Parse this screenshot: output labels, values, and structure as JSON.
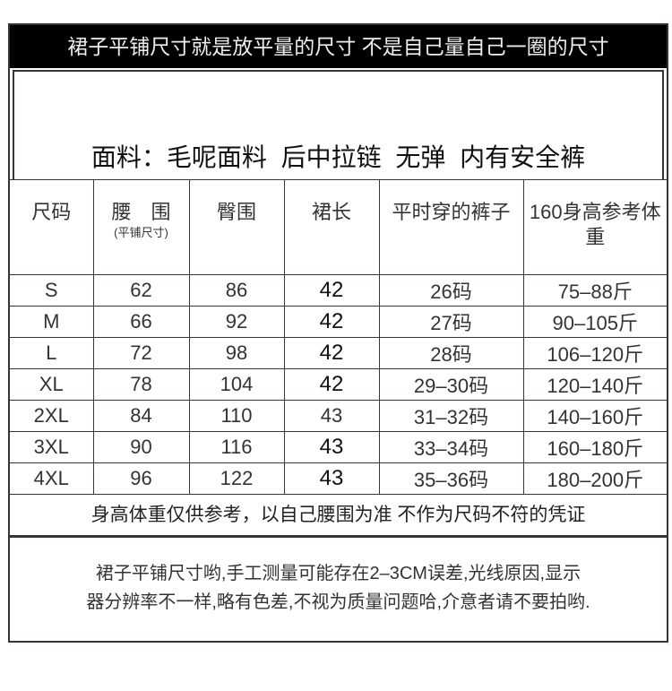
{
  "banner": "裙子平铺尺寸就是放平量的尺寸 不是自己量自己一圈的尺寸",
  "fabric": "面料：毛呢面料 后中拉链 无弹 内有安全裤",
  "table": {
    "headers": [
      "尺码",
      "腰　围",
      "臀围",
      "裙长",
      "平时穿的裤子",
      "160身高参考体重"
    ],
    "waist_sub": "(平铺尺寸)",
    "rows": [
      [
        "S",
        "62",
        "86",
        "42",
        "26码",
        "75–88斤"
      ],
      [
        "M",
        "66",
        "92",
        "42",
        "27码",
        "90–105斤"
      ],
      [
        "L",
        "72",
        "98",
        "42",
        "28码",
        "106–120斤"
      ],
      [
        "XL",
        "78",
        "104",
        "42",
        "29–30码",
        "120–140斤"
      ],
      [
        "2XL",
        "84",
        "110",
        "43",
        "31–32码",
        "140–160斤"
      ],
      [
        "3XL",
        "90",
        "116",
        "43",
        "33–34码",
        "160–180斤"
      ],
      [
        "4XL",
        "96",
        "122",
        "43",
        "35–36码",
        "180–200斤"
      ]
    ]
  },
  "note1": "身高体重仅供参考，以自己腰围为准 不作为尺码不符的凭证",
  "note2_line1": "裙子平铺尺寸哟,手工测量可能存在2–3CM误差,光线原因,显示",
  "note2_line2": "器分辨率不一样,略有色差,不视为质量问题哈,介意者请不要拍哟."
}
